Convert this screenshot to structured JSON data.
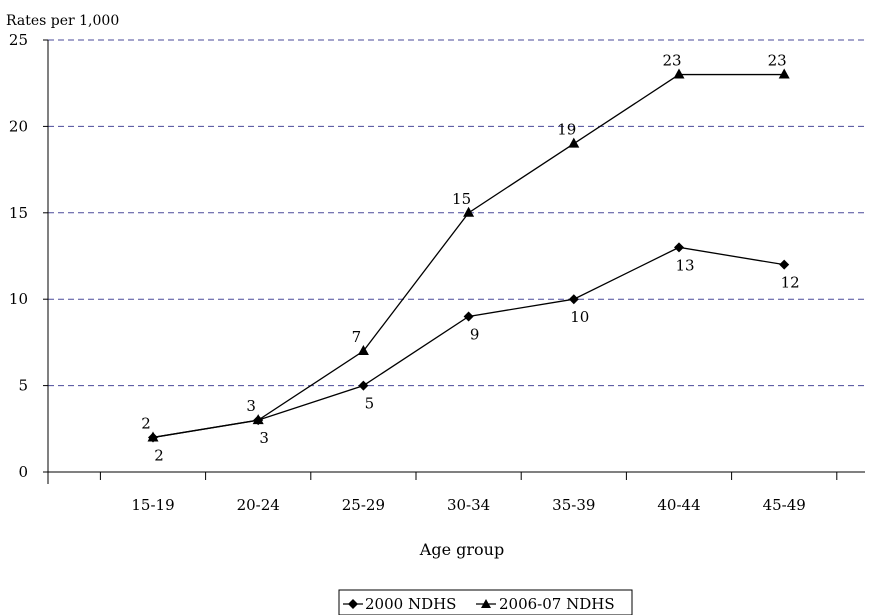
{
  "chart_data": {
    "type": "line",
    "title": "",
    "ylabel": "Rates per 1,000",
    "xlabel": "Age group",
    "categories": [
      "15-19",
      "20-24",
      "25-29",
      "30-34",
      "35-39",
      "40-44",
      "45-49"
    ],
    "ylim": [
      0,
      25
    ],
    "yticks": [
      0,
      5,
      10,
      15,
      20,
      25
    ],
    "grid": "horizontal dashed",
    "legend_position": "bottom-center",
    "series": [
      {
        "name": "2000 NDHS",
        "marker": "diamond",
        "values": [
          2,
          3,
          5,
          9,
          10,
          13,
          12
        ]
      },
      {
        "name": "2006-07 NDHS",
        "marker": "triangle",
        "values": [
          2,
          3,
          7,
          15,
          19,
          23,
          23
        ]
      }
    ],
    "colors": {
      "line": "#000000",
      "grid": "#4a4a9a"
    }
  }
}
